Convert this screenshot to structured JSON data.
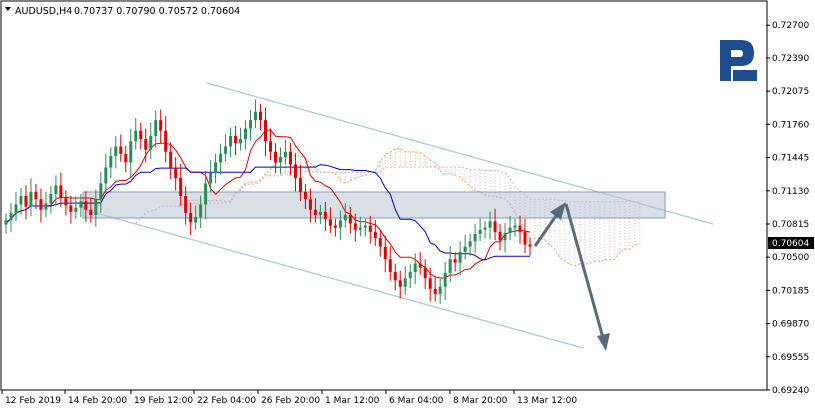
{
  "header": {
    "symbol": "AUDUSD,H4",
    "ohlc": "0.70737 0.70790 0.70572 0.70604"
  },
  "price_tag": "0.70604",
  "chart_data": {
    "type": "candlestick",
    "symbol": "AUDUSD",
    "timeframe": "H4",
    "y_ticks": [
      "0.72700",
      "0.72390",
      "0.72075",
      "0.71760",
      "0.71445",
      "0.71130",
      "0.70815",
      "0.70500",
      "0.70185",
      "0.69870",
      "0.69555",
      "0.69240"
    ],
    "ylim": [
      0.6924,
      0.7293
    ],
    "x_ticks": [
      "12 Feb 2019",
      "14 Feb 20:00",
      "19 Feb 12:00",
      "22 Feb 04:00",
      "26 Feb 20:00",
      "1 Mar 12:00",
      "6 Mar 04:00",
      "8 Mar 20:00",
      "13 Mar 12:00"
    ],
    "last_price": 0.70604,
    "grid": false,
    "colors": {
      "bull": "#2e8b57",
      "bear": "#e00000",
      "tenkan": "#e00000",
      "kijun": "#0000cc",
      "cloud_a": "#f4a460",
      "cloud_b": "#d8b0d8",
      "channel": "#b0c4de",
      "zone": "#b8c4d4",
      "arrow": "#5a6a78"
    },
    "closes": [
      0.7085,
      0.7092,
      0.71,
      0.7108,
      0.7098,
      0.7112,
      0.7105,
      0.7095,
      0.7101,
      0.711,
      0.7118,
      0.7106,
      0.7099,
      0.7093,
      0.7097,
      0.7103,
      0.7095,
      0.709,
      0.7105,
      0.712,
      0.7135,
      0.7146,
      0.7155,
      0.7148,
      0.714,
      0.716,
      0.717,
      0.7162,
      0.7152,
      0.7165,
      0.718,
      0.717,
      0.715,
      0.7135,
      0.7125,
      0.7108,
      0.7092,
      0.7083,
      0.7088,
      0.71,
      0.712,
      0.713,
      0.714,
      0.7148,
      0.7155,
      0.7165,
      0.7158,
      0.7162,
      0.7172,
      0.718,
      0.7188,
      0.718,
      0.716,
      0.715,
      0.714,
      0.7145,
      0.715,
      0.7138,
      0.7125,
      0.7112,
      0.7105,
      0.7095,
      0.709,
      0.7093,
      0.7086,
      0.708,
      0.7078,
      0.7085,
      0.709,
      0.7082,
      0.7076,
      0.7078,
      0.708,
      0.7074,
      0.7068,
      0.706,
      0.7048,
      0.7036,
      0.7028,
      0.7022,
      0.703,
      0.7036,
      0.7044,
      0.704,
      0.703,
      0.702,
      0.7015,
      0.7022,
      0.7035,
      0.7048,
      0.7045,
      0.7055,
      0.706,
      0.7065,
      0.7072,
      0.7076,
      0.7078,
      0.7084,
      0.7074,
      0.7066,
      0.7073,
      0.7078,
      0.708,
      0.7074,
      0.7062,
      0.706
    ]
  }
}
